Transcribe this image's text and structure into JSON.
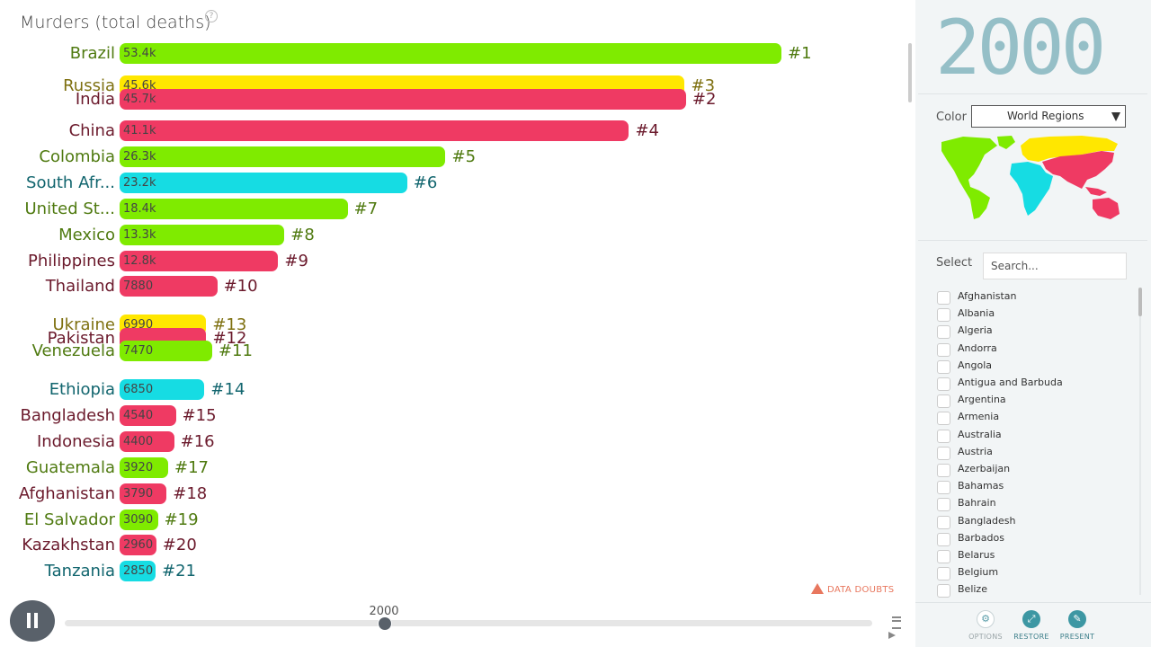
{
  "chart_data": {
    "type": "bar",
    "orientation": "horizontal",
    "title": "Murders (total deaths)",
    "xlim": [
      0,
      56000
    ],
    "series": [
      {
        "country": "Brazil",
        "value": 53400,
        "value_label": "53.4k",
        "rank": "#1",
        "region": "americas"
      },
      {
        "country": "Russia",
        "value": 45600,
        "value_label": "45.6k",
        "rank": "#3",
        "region": "europe"
      },
      {
        "country": "India",
        "value": 45700,
        "value_label": "45.7k",
        "rank": "#2",
        "region": "asia"
      },
      {
        "country": "China",
        "value": 41100,
        "value_label": "41.1k",
        "rank": "#4",
        "region": "asia"
      },
      {
        "country": "Colombia",
        "value": 26300,
        "value_label": "26.3k",
        "rank": "#5",
        "region": "americas"
      },
      {
        "country": "South Afr...",
        "value": 23200,
        "value_label": "23.2k",
        "rank": "#6",
        "region": "africa"
      },
      {
        "country": "United St...",
        "value": 18400,
        "value_label": "18.4k",
        "rank": "#7",
        "region": "americas"
      },
      {
        "country": "Mexico",
        "value": 13300,
        "value_label": "13.3k",
        "rank": "#8",
        "region": "americas"
      },
      {
        "country": "Philippines",
        "value": 12800,
        "value_label": "12.8k",
        "rank": "#9",
        "region": "asia"
      },
      {
        "country": "Thailand",
        "value": 7880,
        "value_label": "7880",
        "rank": "#10",
        "region": "asia"
      },
      {
        "country": "Ukraine",
        "value": 6990,
        "value_label": "6990",
        "rank": "#13",
        "region": "europe"
      },
      {
        "country": "Pakistan",
        "value": 7000,
        "value_label": "",
        "rank": "#12",
        "region": "asia"
      },
      {
        "country": "Venezuela",
        "value": 7470,
        "value_label": "7470",
        "rank": "#11",
        "region": "americas"
      },
      {
        "country": "Ethiopia",
        "value": 6850,
        "value_label": "6850",
        "rank": "#14",
        "region": "africa"
      },
      {
        "country": "Bangladesh",
        "value": 4540,
        "value_label": "4540",
        "rank": "#15",
        "region": "asia"
      },
      {
        "country": "Indonesia",
        "value": 4400,
        "value_label": "4400",
        "rank": "#16",
        "region": "asia"
      },
      {
        "country": "Guatemala",
        "value": 3920,
        "value_label": "3920",
        "rank": "#17",
        "region": "americas"
      },
      {
        "country": "Afghanistan",
        "value": 3790,
        "value_label": "3790",
        "rank": "#18",
        "region": "asia"
      },
      {
        "country": "El Salvador",
        "value": 3090,
        "value_label": "3090",
        "rank": "#19",
        "region": "americas"
      },
      {
        "country": "Kazakhstan",
        "value": 2960,
        "value_label": "2960",
        "rank": "#20",
        "region": "asia"
      },
      {
        "country": "Tanzania",
        "value": 2850,
        "value_label": "2850",
        "rank": "#21",
        "region": "africa"
      }
    ]
  },
  "region_colors": {
    "americas": {
      "bar": "#7feb00",
      "text": "#4f7a10"
    },
    "europe": {
      "bar": "#ffe700",
      "text": "#7e7010"
    },
    "asia": {
      "bar": "#ef3a63",
      "text": "#6b1a2c"
    },
    "africa": {
      "bar": "#16dce3",
      "text": "#11656e"
    }
  },
  "chart": {
    "title": "Murders (total deaths)",
    "help_icon": "?",
    "data_doubts": "DATA DOUBTS"
  },
  "timeslider": {
    "year": "2000"
  },
  "side": {
    "year": "2000",
    "color_label": "Color",
    "color_value": "World Regions",
    "select_label": "Select",
    "search_placeholder": "Search...",
    "countries": [
      "Afghanistan",
      "Albania",
      "Algeria",
      "Andorra",
      "Angola",
      "Antigua and Barbuda",
      "Argentina",
      "Armenia",
      "Australia",
      "Austria",
      "Azerbaijan",
      "Bahamas",
      "Bahrain",
      "Bangladesh",
      "Barbados",
      "Belarus",
      "Belgium",
      "Belize"
    ]
  },
  "tools": {
    "options": "OPTIONS",
    "restore": "RESTORE",
    "present": "PRESENT"
  }
}
